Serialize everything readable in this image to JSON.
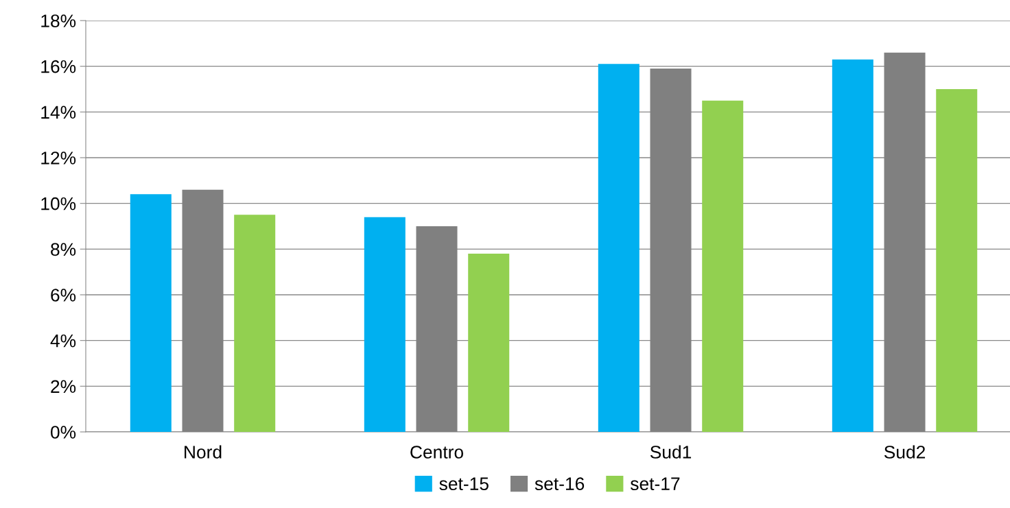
{
  "chart_data": {
    "type": "bar",
    "categories": [
      "Nord",
      "Centro",
      "Sud1",
      "Sud2"
    ],
    "series": [
      {
        "name": "set-15",
        "color": "#00b0f0",
        "values": [
          10.4,
          9.4,
          16.1,
          16.3
        ]
      },
      {
        "name": "set-16",
        "color": "#808080",
        "values": [
          10.6,
          9.0,
          15.9,
          16.6
        ]
      },
      {
        "name": "set-17",
        "color": "#92d050",
        "values": [
          9.5,
          7.8,
          14.5,
          15.0
        ]
      }
    ],
    "ylim": [
      0,
      18
    ],
    "yticks": [
      {
        "value": 0,
        "label": "0%"
      },
      {
        "value": 2,
        "label": "2%"
      },
      {
        "value": 4,
        "label": "4%"
      },
      {
        "value": 6,
        "label": "6%"
      },
      {
        "value": 8,
        "label": "8%"
      },
      {
        "value": 10,
        "label": "10%"
      },
      {
        "value": 12,
        "label": "12%"
      },
      {
        "value": 14,
        "label": "14%"
      },
      {
        "value": 16,
        "label": "16%"
      },
      {
        "value": 18,
        "label": "18%"
      }
    ],
    "grid": "y",
    "legend": "bottom"
  }
}
